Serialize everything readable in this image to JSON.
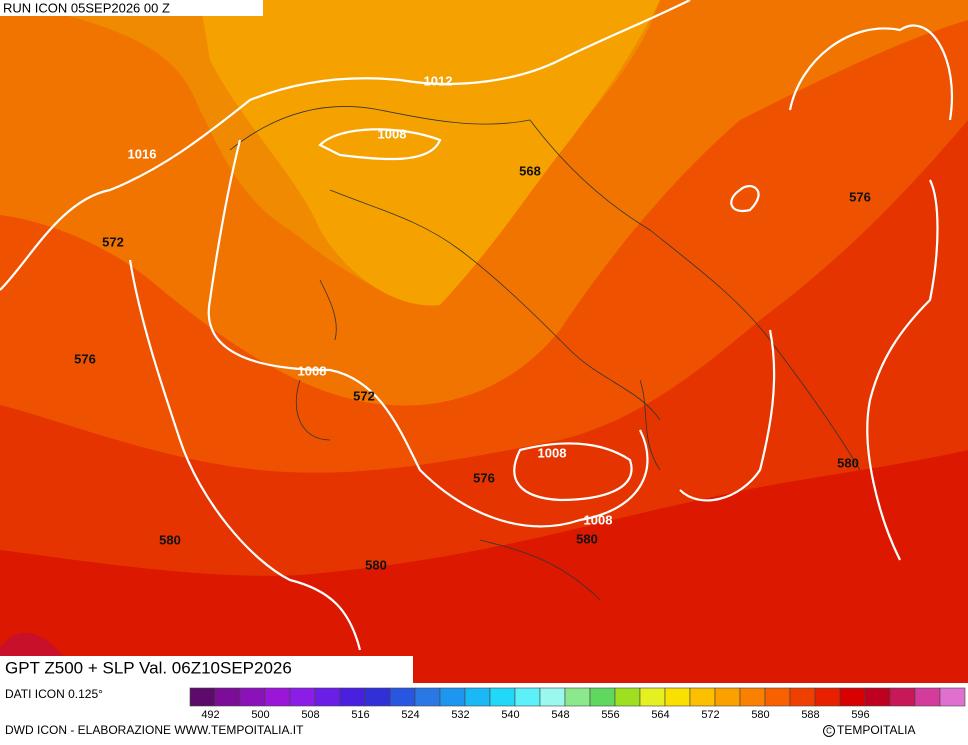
{
  "header": {
    "run": "RUN ICON 05SEP2026 00 Z"
  },
  "map": {
    "title": "GPT Z500 + SLP Val. 06Z10SEP2026",
    "height_labels": [
      572,
      568,
      576,
      576,
      572,
      576,
      580,
      580,
      580,
      580
    ],
    "pressure_labels": [
      1012,
      1008,
      1016,
      1008,
      1008,
      1008
    ]
  },
  "footer": {
    "source": "DATI ICON 0.125°",
    "credit": "DWD ICON - ELABORAZIONE WWW.TEMPOITALIA.IT",
    "copyright": "TEMPOITALIA"
  },
  "colorbar": {
    "colors": [
      "#5c0b6b",
      "#7b0d96",
      "#8b12b8",
      "#9a16d8",
      "#8a1de6",
      "#6a1ee6",
      "#4a20e0",
      "#3030d8",
      "#2856e0",
      "#2a78e6",
      "#1c96ee",
      "#1ab8f4",
      "#22d8f8",
      "#5cf0f8",
      "#9af8f0",
      "#8ce88c",
      "#60d860",
      "#9ee020",
      "#e6f020",
      "#fae000",
      "#fcc000",
      "#fca000",
      "#fa8000",
      "#f86000",
      "#f04000",
      "#e82000",
      "#d80000",
      "#c00020",
      "#c81858",
      "#d43c9c",
      "#e070d0"
    ],
    "ticks": [
      492,
      500,
      508,
      516,
      524,
      532,
      540,
      548,
      556,
      564,
      572,
      580,
      588,
      596
    ]
  }
}
